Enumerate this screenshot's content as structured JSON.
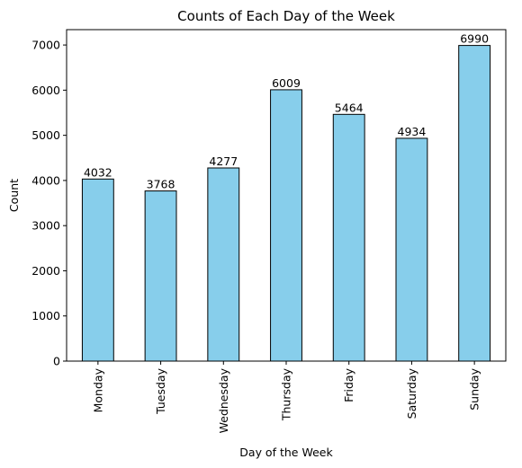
{
  "chart_data": {
    "type": "bar",
    "title": "Counts of Each Day of the Week",
    "xlabel": "Day of the Week",
    "ylabel": "Count",
    "categories": [
      "Monday",
      "Tuesday",
      "Wednesday",
      "Thursday",
      "Friday",
      "Saturday",
      "Sunday"
    ],
    "values": [
      4032,
      3768,
      4277,
      6009,
      5464,
      4934,
      6990
    ],
    "ylim": [
      0,
      7340
    ],
    "yticks": [
      0,
      1000,
      2000,
      3000,
      4000,
      5000,
      6000,
      7000
    ],
    "grid": false,
    "legend": "none",
    "bar_color": "#87ceeb",
    "edge_color": "#000000"
  }
}
